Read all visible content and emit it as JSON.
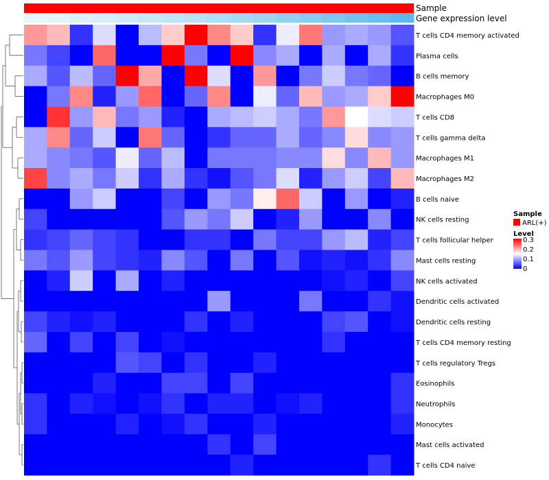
{
  "chart_data": {
    "type": "heatmap",
    "annotation_rows": [
      "Sample",
      "Gene expression level"
    ],
    "legend": {
      "sample_title": "Sample",
      "sample_entries": [
        {
          "label": "ARL(+)",
          "color": "#ff0000"
        }
      ],
      "level_title": "Level",
      "level_ticks": [
        "0.3",
        "0.2",
        "0.1",
        "0"
      ]
    },
    "color_scale": {
      "min": 0,
      "mid": 0.15,
      "max": 0.3,
      "low": "#0000ff",
      "midColor": "#ffffff",
      "high": "#ff0000"
    },
    "expression_level_colors": [
      "#e6f5fc",
      "#e3f4fb",
      "#ddf1fa",
      "#d6eef9",
      "#cfebf8",
      "#c8e8f7",
      "#c0e5f6",
      "#b8e1f5",
      "#afddf4",
      "#a6d9f3",
      "#9dd5f2",
      "#93d1f1",
      "#89ccf0",
      "#7fc7ef",
      "#75c2ee",
      "#6bbdee",
      "#60b8ed"
    ],
    "rows": [
      "T cells CD4 memory activated",
      "Plasma cells",
      "B cells memory",
      "Macrophages M0",
      "T cells CD8",
      "T cells gamma delta",
      "Macrophages M1",
      "Macrophages M2",
      "B cells naive",
      "NK cells resting",
      "T cells follicular helper",
      "Mast cells resting",
      "NK cells activated",
      "Dendritic cells activated",
      "Dendritic cells resting",
      "T cells CD4 memory resting",
      "T cells regulatory  Tregs",
      "Eosinophils",
      "Neutrophils",
      "Monocytes",
      "Mast cells activated",
      "T cells CD4 naive"
    ],
    "values": [
      [
        0.21,
        0.19,
        0.03,
        0.13,
        0.0,
        0.11,
        0.18,
        0.3,
        0.22,
        0.18,
        0.03,
        0.14,
        0.23,
        0.09,
        0.1,
        0.09,
        0.05
      ],
      [
        0.07,
        0.04,
        0.0,
        0.24,
        0.0,
        0.0,
        0.3,
        0.07,
        0.0,
        0.3,
        0.08,
        0.1,
        0.0,
        0.1,
        0.0,
        0.1,
        0.03
      ],
      [
        0.1,
        0.05,
        0.11,
        0.06,
        0.3,
        0.2,
        0.0,
        0.3,
        0.13,
        0.0,
        0.21,
        0.0,
        0.07,
        0.12,
        0.07,
        0.06,
        0.0
      ],
      [
        0.0,
        0.07,
        0.22,
        0.02,
        0.09,
        0.24,
        0.0,
        0.06,
        0.22,
        0.0,
        0.14,
        0.06,
        0.19,
        0.09,
        0.1,
        0.18,
        0.3
      ],
      [
        0.0,
        0.27,
        0.09,
        0.19,
        0.07,
        0.09,
        0.02,
        0.0,
        0.1,
        0.11,
        0.12,
        0.1,
        0.07,
        0.21,
        0.15,
        0.13,
        0.12
      ],
      [
        0.1,
        0.22,
        0.06,
        0.12,
        0.0,
        0.23,
        0.06,
        0.0,
        0.03,
        0.06,
        0.06,
        0.1,
        0.06,
        0.08,
        0.17,
        0.08,
        0.09
      ],
      [
        0.1,
        0.08,
        0.07,
        0.05,
        0.14,
        0.06,
        0.11,
        0.0,
        0.07,
        0.07,
        0.07,
        0.08,
        0.08,
        0.17,
        0.08,
        0.19,
        0.09
      ],
      [
        0.26,
        0.08,
        0.1,
        0.07,
        0.12,
        0.03,
        0.1,
        0.03,
        0.01,
        0.05,
        0.07,
        0.13,
        0.02,
        0.09,
        0.12,
        0.04,
        0.19
      ],
      [
        0.0,
        0.0,
        0.09,
        0.12,
        0.0,
        0.0,
        0.04,
        0.0,
        0.09,
        0.07,
        0.16,
        0.24,
        0.12,
        0.0,
        0.09,
        0.0,
        0.02
      ],
      [
        0.04,
        0.0,
        0.0,
        0.0,
        0.0,
        0.0,
        0.05,
        0.09,
        0.07,
        0.12,
        0.0,
        0.02,
        0.09,
        0.0,
        0.0,
        0.08,
        0.0
      ],
      [
        0.03,
        0.04,
        0.06,
        0.04,
        0.03,
        0.0,
        0.0,
        0.03,
        0.03,
        0.0,
        0.07,
        0.04,
        0.04,
        0.09,
        0.11,
        0.02,
        0.04
      ],
      [
        0.07,
        0.05,
        0.09,
        0.04,
        0.03,
        0.02,
        0.08,
        0.05,
        0.0,
        0.07,
        0.0,
        0.05,
        0.01,
        0.02,
        0.01,
        0.03,
        0.08
      ],
      [
        0.0,
        0.02,
        0.12,
        0.0,
        0.1,
        0.0,
        0.02,
        0.0,
        0.0,
        0.0,
        0.0,
        0.0,
        0.0,
        0.01,
        0.02,
        0.0,
        0.04
      ],
      [
        0.0,
        0.0,
        0.0,
        0.0,
        0.0,
        0.0,
        0.0,
        0.0,
        0.09,
        0.0,
        0.0,
        0.0,
        0.07,
        0.0,
        0.0,
        0.03,
        0.01
      ],
      [
        0.04,
        0.02,
        0.01,
        0.02,
        0.0,
        0.0,
        0.0,
        0.03,
        0.0,
        0.02,
        0.0,
        0.0,
        0.0,
        0.04,
        0.05,
        0.0,
        0.01
      ],
      [
        0.06,
        0.0,
        0.04,
        0.0,
        0.04,
        0.0,
        0.01,
        0.0,
        0.0,
        0.0,
        0.0,
        0.0,
        0.0,
        0.03,
        0.0,
        0.0,
        0.0
      ],
      [
        0.0,
        0.0,
        0.0,
        0.0,
        0.05,
        0.04,
        0.0,
        0.03,
        0.0,
        0.0,
        0.02,
        0.0,
        0.0,
        0.0,
        0.0,
        0.0,
        0.0
      ],
      [
        0.0,
        0.0,
        0.0,
        0.02,
        0.0,
        0.0,
        0.04,
        0.04,
        0.0,
        0.04,
        0.0,
        0.0,
        0.0,
        0.0,
        0.0,
        0.0,
        0.03
      ],
      [
        0.03,
        0.0,
        0.02,
        0.01,
        0.0,
        0.01,
        0.03,
        0.0,
        0.02,
        0.02,
        0.0,
        0.01,
        0.02,
        0.0,
        0.0,
        0.0,
        0.03
      ],
      [
        0.03,
        0.0,
        0.0,
        0.0,
        0.02,
        0.0,
        0.01,
        0.03,
        0.0,
        0.0,
        0.02,
        0.0,
        0.0,
        0.0,
        0.0,
        0.0,
        0.02
      ],
      [
        0.0,
        0.0,
        0.0,
        0.0,
        0.0,
        0.0,
        0.0,
        0.0,
        0.03,
        0.0,
        0.04,
        0.0,
        0.0,
        0.0,
        0.0,
        0.0,
        0.0
      ],
      [
        0.0,
        0.0,
        0.0,
        0.0,
        0.0,
        0.0,
        0.0,
        0.0,
        0.0,
        0.02,
        0.0,
        0.0,
        0.0,
        0.0,
        0.0,
        0.03,
        0.0
      ]
    ]
  }
}
